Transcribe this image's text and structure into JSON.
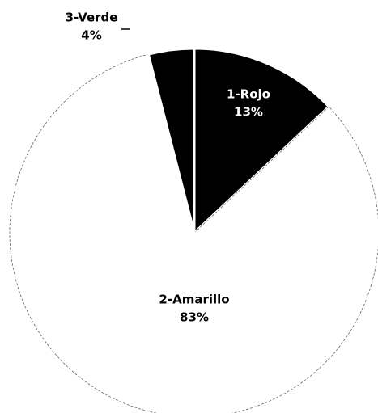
{
  "chart_data": {
    "type": "pie",
    "categories": [
      "1-Rojo",
      "2-Amarillo",
      "3-Verde"
    ],
    "values": [
      13,
      83,
      4
    ],
    "value_labels": [
      "13%",
      "83%",
      "4%"
    ],
    "colors": [
      "#000000",
      "#ffffff",
      "#000000"
    ]
  }
}
